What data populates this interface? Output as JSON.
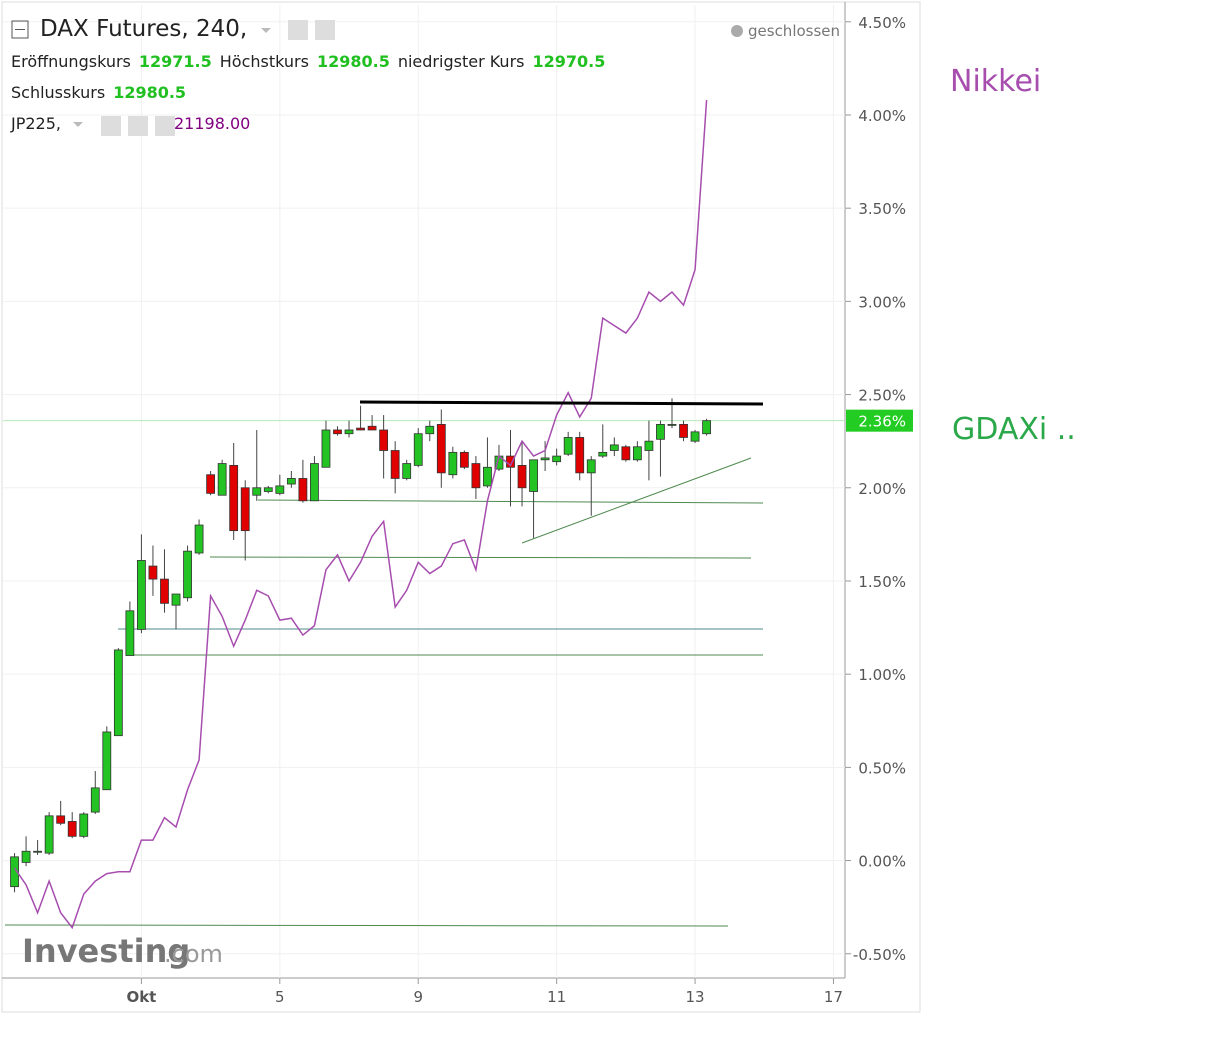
{
  "chart_data": {
    "type": "candlestick",
    "title": "DAX Futures, 240,",
    "status": "geschlossen",
    "fields": [
      {
        "label": "Eröffnungskurs",
        "value": 12971.5
      },
      {
        "label": "Höchstkurs",
        "value": 12980.5
      },
      {
        "label": "niedrigster Kurs",
        "value": 12970.5
      },
      {
        "label": "Schlusskurs",
        "value": 12980.5
      }
    ],
    "watermark": [
      "Investing",
      ".com"
    ],
    "annotations": [
      {
        "text": "Nikkei",
        "color": "#a64dae"
      },
      {
        "text": "GDAXi ..",
        "color": "#2aa84a"
      }
    ],
    "x": [
      0,
      1,
      2,
      3,
      4,
      5,
      6,
      7,
      8,
      9,
      10,
      11,
      12,
      13,
      14,
      15,
      16,
      17,
      18,
      19,
      20,
      21,
      22,
      23,
      24,
      25,
      26,
      27,
      28,
      29,
      30,
      31,
      32,
      33,
      34,
      35,
      36,
      37,
      38,
      39,
      40,
      41,
      42,
      43,
      44,
      45,
      46,
      47,
      48,
      49,
      50,
      51,
      52,
      53,
      54,
      55,
      56,
      57,
      58,
      59,
      60
    ],
    "open": [
      -0.14,
      -0.01,
      0.05,
      0.04,
      0.24,
      0.21,
      0.13,
      0.26,
      0.38,
      0.67,
      1.1,
      1.24,
      1.58,
      1.51,
      1.37,
      1.41,
      1.65,
      2.07,
      1.96,
      2.12,
      2.0,
      1.96,
      1.98,
      1.97,
      2.02,
      2.05,
      1.93,
      2.11,
      2.31,
      2.29,
      2.32,
      2.33,
      2.31,
      2.2,
      2.05,
      2.12,
      2.29,
      2.34,
      2.07,
      2.19,
      2.13,
      2.01,
      2.1,
      2.17,
      2.12,
      1.98,
      2.15,
      2.14,
      2.18,
      2.27,
      2.08,
      2.17,
      2.2,
      2.22,
      2.15,
      2.2,
      2.26,
      2.34,
      2.34,
      2.25,
      2.29
    ],
    "high": [
      0.04,
      0.13,
      0.11,
      0.26,
      0.32,
      0.26,
      0.26,
      0.48,
      0.72,
      1.14,
      1.39,
      1.75,
      1.69,
      1.67,
      1.43,
      1.69,
      1.83,
      2.09,
      2.15,
      2.24,
      2.04,
      2.31,
      2.01,
      2.07,
      2.09,
      2.15,
      2.17,
      2.36,
      2.33,
      2.36,
      2.44,
      2.39,
      2.39,
      2.25,
      2.15,
      2.32,
      2.36,
      2.42,
      2.22,
      2.2,
      2.17,
      2.27,
      2.23,
      2.31,
      2.25,
      2.15,
      2.25,
      2.21,
      2.3,
      2.3,
      2.17,
      2.34,
      2.27,
      2.23,
      2.25,
      2.36,
      2.36,
      2.48,
      2.36,
      2.31,
      2.37
    ],
    "low": [
      -0.17,
      -0.03,
      0.03,
      0.03,
      0.19,
      0.12,
      0.12,
      0.25,
      0.38,
      0.67,
      1.1,
      1.22,
      1.42,
      1.33,
      1.24,
      1.39,
      1.64,
      1.96,
      1.96,
      1.72,
      1.61,
      1.93,
      1.97,
      1.96,
      2.0,
      1.92,
      1.93,
      2.11,
      2.28,
      2.27,
      2.31,
      2.31,
      2.05,
      1.97,
      2.04,
      2.11,
      2.25,
      2.0,
      2.05,
      2.1,
      1.94,
      2.0,
      2.09,
      1.9,
      1.9,
      1.73,
      2.09,
      2.12,
      2.17,
      2.04,
      1.85,
      2.16,
      2.17,
      2.14,
      2.14,
      2.04,
      2.06,
      2.32,
      2.25,
      2.24,
      2.28
    ],
    "close": [
      0.02,
      0.05,
      0.05,
      0.24,
      0.2,
      0.13,
      0.25,
      0.39,
      0.69,
      1.13,
      1.34,
      1.61,
      1.51,
      1.38,
      1.43,
      1.66,
      1.8,
      1.97,
      2.13,
      1.77,
      1.77,
      2.0,
      2.0,
      2.01,
      2.05,
      1.93,
      2.13,
      2.31,
      2.29,
      2.31,
      2.31,
      2.31,
      2.2,
      2.05,
      2.13,
      2.29,
      2.33,
      2.08,
      2.19,
      2.11,
      2.0,
      2.11,
      2.17,
      2.11,
      2.0,
      2.15,
      2.16,
      2.17,
      2.27,
      2.08,
      2.15,
      2.19,
      2.23,
      2.15,
      2.22,
      2.25,
      2.34,
      2.34,
      2.27,
      2.3,
      2.36
    ],
    "up_color": "#22c322",
    "down_color": "#e00000",
    "last_price": {
      "value": 2.36,
      "label": "2.36%",
      "color": "#22cc22"
    },
    "series": [
      {
        "name": "JP225,",
        "last": {
          "value": 21198,
          "label": "21198.00"
        },
        "color": "#a64dae",
        "values": [
          -0.04,
          -0.13,
          -0.28,
          -0.11,
          -0.28,
          -0.36,
          -0.18,
          -0.11,
          -0.07,
          -0.06,
          -0.06,
          0.11,
          0.11,
          0.23,
          0.18,
          0.38,
          0.54,
          1.42,
          1.31,
          1.15,
          1.29,
          1.45,
          1.42,
          1.29,
          1.3,
          1.21,
          1.26,
          1.56,
          1.64,
          1.5,
          1.6,
          1.74,
          1.82,
          1.36,
          1.45,
          1.6,
          1.54,
          1.58,
          1.7,
          1.72,
          1.56,
          1.93,
          2.17,
          2.12,
          2.25,
          2.17,
          2.2,
          2.39,
          2.51,
          2.38,
          2.48,
          2.91,
          2.87,
          2.83,
          2.91,
          3.05,
          3.0,
          3.05,
          2.98,
          3.17,
          4.08
        ]
      }
    ],
    "xlim": [
      -1,
      72
    ],
    "xticks": [
      {
        "value": 11,
        "label": "Okt"
      },
      {
        "value": 23,
        "label": "5"
      },
      {
        "value": 35,
        "label": "9"
      },
      {
        "value": 47,
        "label": "11"
      },
      {
        "value": 59,
        "label": "13"
      },
      {
        "value": 71,
        "label": "17"
      }
    ],
    "ylim": [
      -0.63,
      4.59
    ],
    "yticks": [
      {
        "value": -0.5,
        "label": "-0.50%"
      },
      {
        "value": 0,
        "label": "0.00%"
      },
      {
        "value": 0.5,
        "label": "0.50%"
      },
      {
        "value": 1,
        "label": "1.00%"
      },
      {
        "value": 1.5,
        "label": "1.50%"
      },
      {
        "value": 2,
        "label": "2.00%"
      },
      {
        "value": 2.5,
        "label": "2.50%"
      },
      {
        "value": 3,
        "label": "3.00%"
      },
      {
        "value": 3.5,
        "label": "3.50%"
      },
      {
        "value": 4,
        "label": "4.00%"
      },
      {
        "value": 4.5,
        "label": "4.50%"
      }
    ],
    "grid": true
  }
}
